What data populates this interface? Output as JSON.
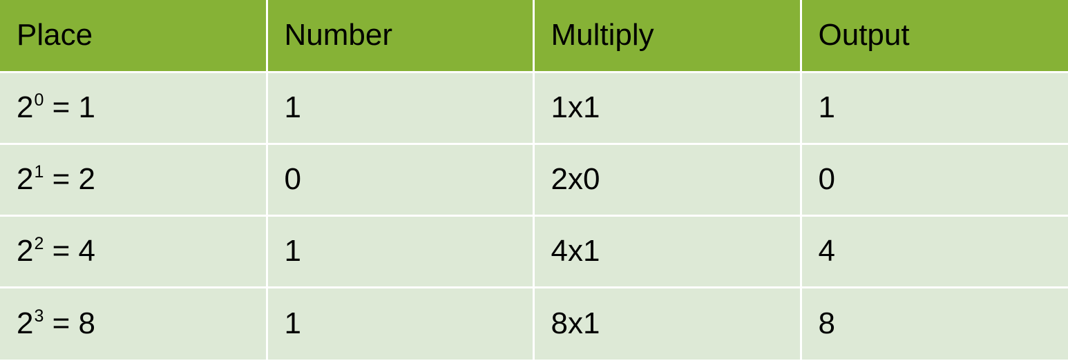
{
  "colors": {
    "header_bg": "#86b236",
    "row_bg": "#dde9d6",
    "grid_line": "#ffffff",
    "text": "#000000"
  },
  "table": {
    "headers": [
      "Place",
      "Number",
      "Multiply",
      "Output"
    ],
    "rows": [
      {
        "place_base": "2",
        "place_exp": "0",
        "place_rest": " = 1",
        "number": "1",
        "multiply": "1x1",
        "output": "1"
      },
      {
        "place_base": "2",
        "place_exp": "1",
        "place_rest": " = 2",
        "number": "0",
        "multiply": "2x0",
        "output": "0"
      },
      {
        "place_base": "2",
        "place_exp": "2",
        "place_rest": " = 4",
        "number": "1",
        "multiply": "4x1",
        "output": "4"
      },
      {
        "place_base": "2",
        "place_exp": "3",
        "place_rest": " = 8",
        "number": "1",
        "multiply": "8x1",
        "output": "8"
      }
    ]
  }
}
